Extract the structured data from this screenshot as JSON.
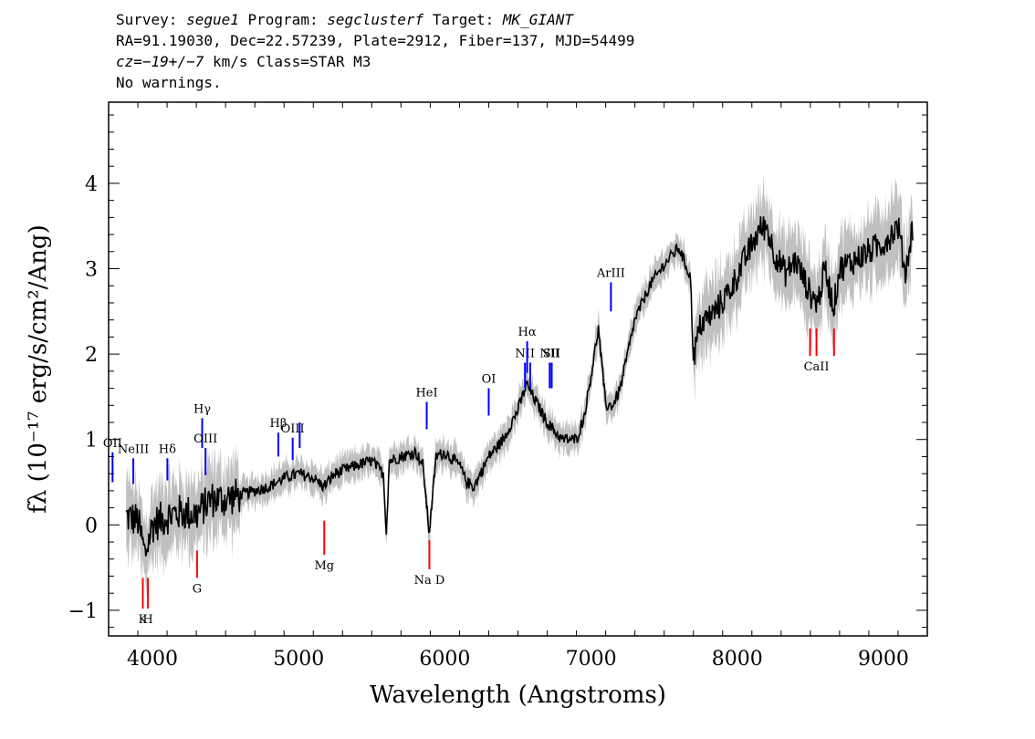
{
  "header": {
    "survey_label": "Survey:",
    "survey": "segue1",
    "program_label": "Program:",
    "program": "segclusterf",
    "target_label": "Target:",
    "target": "MK_GIANT",
    "line2": "RA=91.19030, Dec=22.57239, Plate=2912, Fiber=137, MJD=54499",
    "cz_label": "cz=",
    "cz_value": "−19+/−7",
    "cz_rest": " km/s Class=STAR M3",
    "line4": "No warnings."
  },
  "chart_data": {
    "type": "line",
    "xlabel": "Wavelength (Angstroms)",
    "ylabel": "fλ (10⁻¹⁷ erg/s/cm²/Ang)",
    "xlim": [
      3700,
      9300
    ],
    "ylim": [
      -1.3,
      4.95
    ],
    "x_ticks": [
      4000,
      5000,
      6000,
      7000,
      8000,
      9000
    ],
    "y_ticks": [
      -1,
      0,
      1,
      2,
      3,
      4
    ],
    "colors": {
      "flux": "#000000",
      "error_band": "#c0c0c0",
      "emission": "#0000ff",
      "absorption": "#ff0000"
    },
    "series": [
      {
        "points": [
          [
            3820,
            0.1
          ],
          [
            3900,
            0.05
          ],
          [
            3950,
            -0.35
          ],
          [
            4000,
            0.0
          ],
          [
            4100,
            0.1
          ],
          [
            4200,
            0.15
          ],
          [
            4300,
            0.12
          ],
          [
            4400,
            0.3
          ],
          [
            4500,
            0.3
          ],
          [
            4600,
            0.35
          ],
          [
            4700,
            0.4
          ],
          [
            4800,
            0.45
          ],
          [
            4900,
            0.55
          ],
          [
            5000,
            0.6
          ],
          [
            5100,
            0.55
          ],
          [
            5170,
            0.45
          ],
          [
            5250,
            0.6
          ],
          [
            5400,
            0.7
          ],
          [
            5500,
            0.75
          ],
          [
            5580,
            0.6
          ],
          [
            5600,
            -0.1
          ],
          [
            5620,
            0.75
          ],
          [
            5700,
            0.8
          ],
          [
            5800,
            0.85
          ],
          [
            5850,
            0.7
          ],
          [
            5893,
            -0.1
          ],
          [
            5940,
            0.8
          ],
          [
            6000,
            0.85
          ],
          [
            6100,
            0.7
          ],
          [
            6150,
            0.5
          ],
          [
            6200,
            0.45
          ],
          [
            6300,
            0.8
          ],
          [
            6400,
            1.0
          ],
          [
            6500,
            1.35
          ],
          [
            6560,
            1.65
          ],
          [
            6620,
            1.45
          ],
          [
            6700,
            1.2
          ],
          [
            6800,
            1.0
          ],
          [
            6900,
            1.0
          ],
          [
            6950,
            1.25
          ],
          [
            7000,
            1.75
          ],
          [
            7050,
            2.3
          ],
          [
            7100,
            1.4
          ],
          [
            7150,
            1.4
          ],
          [
            7200,
            1.6
          ],
          [
            7300,
            2.4
          ],
          [
            7400,
            2.8
          ],
          [
            7500,
            3.05
          ],
          [
            7600,
            3.25
          ],
          [
            7680,
            2.9
          ],
          [
            7700,
            1.95
          ],
          [
            7750,
            2.35
          ],
          [
            7850,
            2.5
          ],
          [
            7950,
            2.75
          ],
          [
            8050,
            3.1
          ],
          [
            8150,
            3.45
          ],
          [
            8200,
            3.5
          ],
          [
            8250,
            3.2
          ],
          [
            8330,
            2.95
          ],
          [
            8400,
            3.1
          ],
          [
            8500,
            2.7
          ],
          [
            8550,
            2.6
          ],
          [
            8600,
            3.0
          ],
          [
            8660,
            2.55
          ],
          [
            8700,
            3.0
          ],
          [
            8800,
            3.1
          ],
          [
            8900,
            3.2
          ],
          [
            9000,
            3.3
          ],
          [
            9100,
            3.5
          ],
          [
            9150,
            2.95
          ],
          [
            9200,
            3.5
          ]
        ]
      }
    ],
    "line_markers": [
      {
        "label": "OII",
        "x": 3727,
        "y0": 0.5,
        "y1": 0.85,
        "kind": "emission"
      },
      {
        "label": "NeIII",
        "x": 3869,
        "y0": 0.48,
        "y1": 0.78,
        "kind": "emission"
      },
      {
        "label": "Hδ",
        "x": 4102,
        "y0": 0.52,
        "y1": 0.78,
        "kind": "emission"
      },
      {
        "label": "Hγ",
        "x": 4340,
        "y0": 0.9,
        "y1": 1.25,
        "kind": "emission"
      },
      {
        "label": "OIII",
        "x": 4363,
        "y0": 0.58,
        "y1": 0.9,
        "kind": "emission"
      },
      {
        "label": "Hβ",
        "x": 4861,
        "y0": 0.8,
        "y1": 1.08,
        "kind": "emission"
      },
      {
        "label": "OIII",
        "x": 4959,
        "y0": 0.76,
        "y1": 1.02,
        "kind": "emission"
      },
      {
        "label": "",
        "x": 5007,
        "y0": 0.9,
        "y1": 1.2,
        "kind": "emission"
      },
      {
        "label": "HeI",
        "x": 5876,
        "y0": 1.12,
        "y1": 1.44,
        "kind": "emission"
      },
      {
        "label": "OI",
        "x": 6300,
        "y0": 1.28,
        "y1": 1.6,
        "kind": "emission"
      },
      {
        "label": "NII",
        "x": 6548,
        "y0": 1.6,
        "y1": 1.9,
        "kind": "emission"
      },
      {
        "label": "Hα",
        "x": 6563,
        "y0": 1.78,
        "y1": 2.15,
        "kind": "emission"
      },
      {
        "label": "",
        "x": 6584,
        "y0": 1.6,
        "y1": 1.9,
        "kind": "emission"
      },
      {
        "label": "NII",
        "x": 6717,
        "y0": 1.6,
        "y1": 1.9,
        "kind": "emission"
      },
      {
        "label": "SII",
        "x": 6731,
        "y0": 1.6,
        "y1": 1.9,
        "kind": "emission"
      },
      {
        "label": "ArIII",
        "x": 7136,
        "y0": 2.5,
        "y1": 2.84,
        "kind": "emission"
      },
      {
        "label": "K",
        "x": 3934,
        "y0": -0.62,
        "y1": -0.98,
        "kind": "absorption"
      },
      {
        "label": "H",
        "x": 3969,
        "y0": -0.62,
        "y1": -0.98,
        "kind": "absorption"
      },
      {
        "label": "G",
        "x": 4305,
        "y0": -0.3,
        "y1": -0.62,
        "kind": "absorption"
      },
      {
        "label": "Mg",
        "x": 5175,
        "y0": 0.05,
        "y1": -0.35,
        "kind": "absorption"
      },
      {
        "label": "Na D",
        "x": 5894,
        "y0": -0.18,
        "y1": -0.52,
        "kind": "absorption"
      },
      {
        "label": "",
        "x": 8498,
        "y0": 2.3,
        "y1": 1.98,
        "kind": "absorption"
      },
      {
        "label": "CaII",
        "x": 8542,
        "y0": 2.3,
        "y1": 1.98,
        "kind": "absorption"
      },
      {
        "label": "",
        "x": 8662,
        "y0": 2.3,
        "y1": 1.98,
        "kind": "absorption"
      }
    ]
  }
}
